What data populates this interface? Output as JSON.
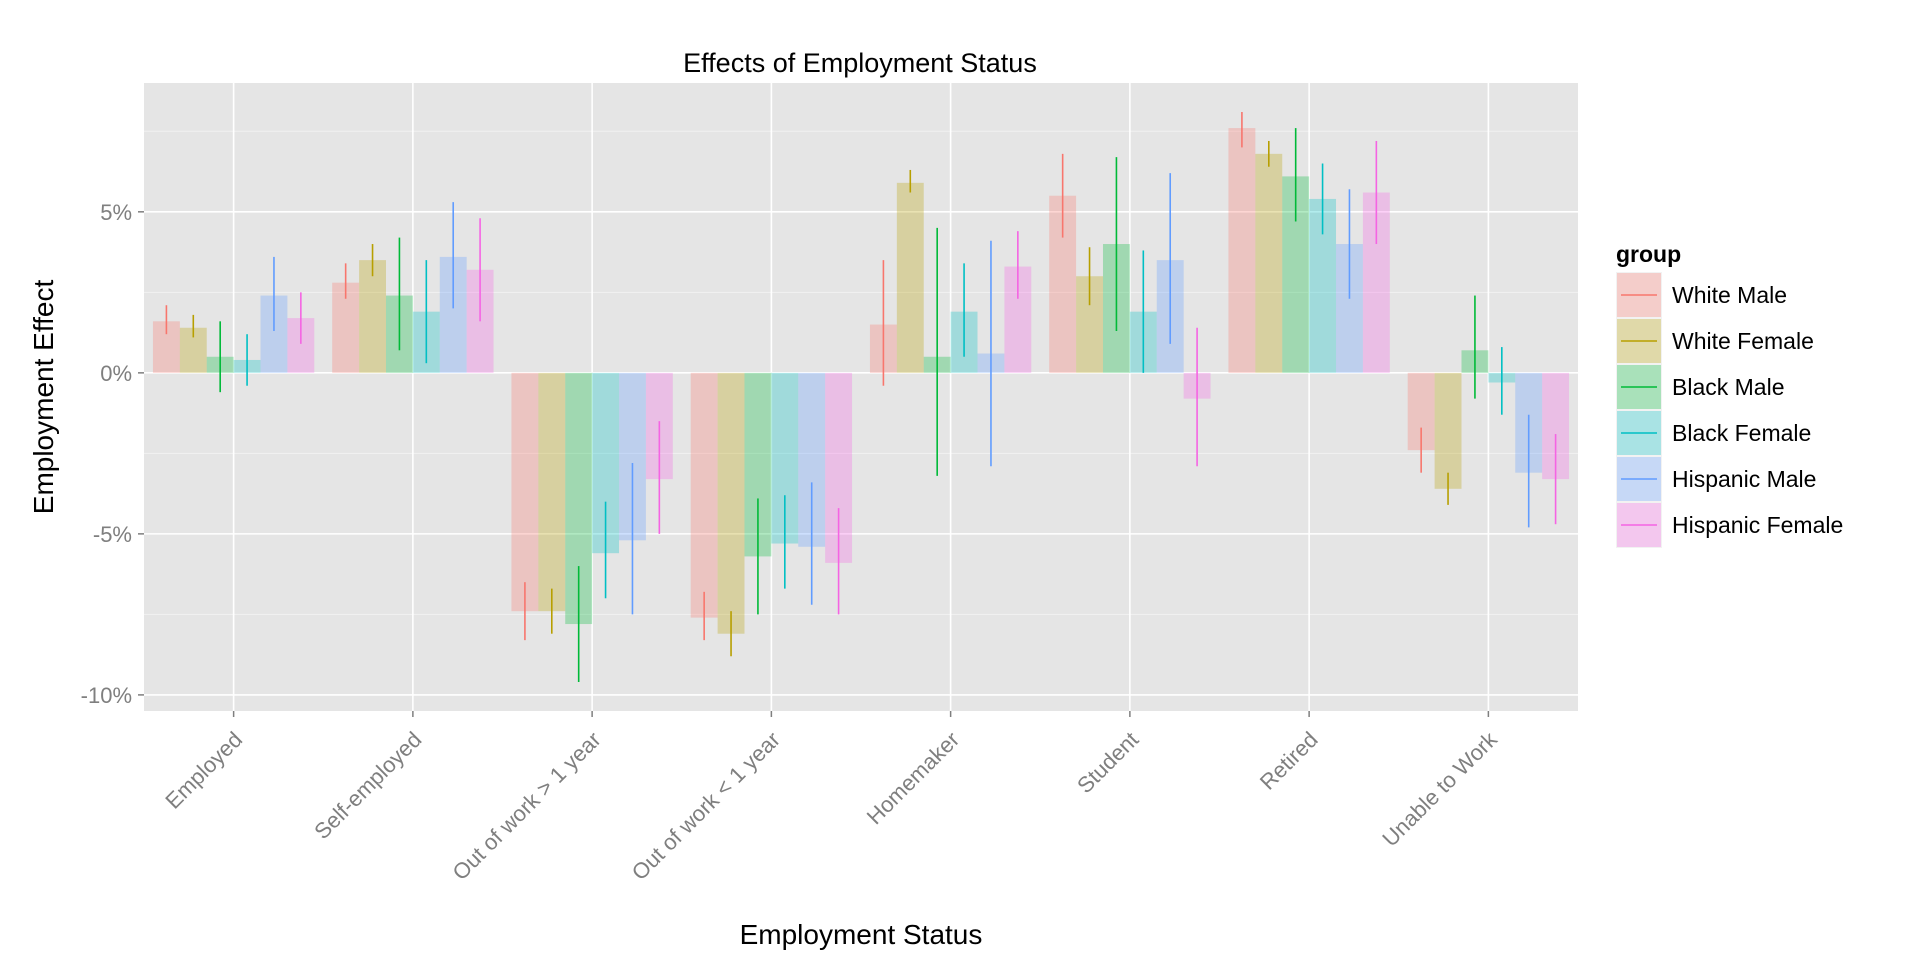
{
  "chart_data": {
    "type": "bar",
    "title": "Effects of Employment Status",
    "xlabel": "Employment Status",
    "ylabel": "Employment Effect",
    "ylim": [
      -10.5,
      9
    ],
    "y_ticks": [
      5,
      0,
      -5,
      -10
    ],
    "y_tick_labels": [
      "5%",
      "0%",
      "-5%",
      "-10%"
    ],
    "grid": true,
    "legend_title": "group",
    "legend_position": "right",
    "categories": [
      "Employed",
      "Self-employed",
      "Out of work > 1 year",
      "Out of work < 1 year",
      "Homemaker",
      "Student",
      "Retired",
      "Unable to Work"
    ],
    "series": [
      {
        "name": "White Male",
        "color": "#F8766D",
        "values": [
          1.6,
          2.8,
          -7.4,
          -7.6,
          1.5,
          5.5,
          7.6,
          -2.4
        ],
        "ci_low": [
          1.2,
          2.3,
          -8.3,
          -8.3,
          -0.4,
          4.2,
          7.0,
          -3.1
        ],
        "ci_high": [
          2.1,
          3.4,
          -6.5,
          -6.8,
          3.5,
          6.8,
          8.1,
          -1.7
        ]
      },
      {
        "name": "White Female",
        "color": "#B79F00",
        "values": [
          1.4,
          3.5,
          -7.4,
          -8.1,
          5.9,
          3.0,
          6.8,
          -3.6
        ],
        "ci_low": [
          1.1,
          3.0,
          -8.1,
          -8.8,
          5.6,
          2.1,
          6.4,
          -4.1
        ],
        "ci_high": [
          1.8,
          4.0,
          -6.7,
          -7.4,
          6.3,
          3.9,
          7.2,
          -3.1
        ]
      },
      {
        "name": "Black Male",
        "color": "#00BA38",
        "values": [
          0.5,
          2.4,
          -7.8,
          -5.7,
          0.5,
          4.0,
          6.1,
          0.7
        ],
        "ci_low": [
          -0.6,
          0.7,
          -9.6,
          -7.5,
          -3.2,
          1.3,
          4.7,
          -0.8
        ],
        "ci_high": [
          1.6,
          4.2,
          -6.0,
          -3.9,
          4.5,
          6.7,
          7.6,
          2.4
        ]
      },
      {
        "name": "Black Female",
        "color": "#00BFC4",
        "values": [
          0.4,
          1.9,
          -5.6,
          -5.3,
          1.9,
          1.9,
          5.4,
          -0.3
        ],
        "ci_low": [
          -0.4,
          0.3,
          -7.0,
          -6.7,
          0.5,
          0.0,
          4.3,
          -1.3
        ],
        "ci_high": [
          1.2,
          3.5,
          -4.0,
          -3.8,
          3.4,
          3.8,
          6.5,
          0.8
        ]
      },
      {
        "name": "Hispanic Male",
        "color": "#619CFF",
        "values": [
          2.4,
          3.6,
          -5.2,
          -5.4,
          0.6,
          3.5,
          4.0,
          -3.1
        ],
        "ci_low": [
          1.3,
          2.0,
          -7.5,
          -7.2,
          -2.9,
          0.9,
          2.3,
          -4.8
        ],
        "ci_high": [
          3.6,
          5.3,
          -2.8,
          -3.4,
          4.1,
          6.2,
          5.7,
          -1.3
        ]
      },
      {
        "name": "Hispanic Female",
        "color": "#F564E3",
        "values": [
          1.7,
          3.2,
          -3.3,
          -5.9,
          3.3,
          -0.8,
          5.6,
          -3.3
        ],
        "ci_low": [
          0.9,
          1.6,
          -5.0,
          -7.5,
          2.3,
          -2.9,
          4.0,
          -4.7
        ],
        "ci_high": [
          2.5,
          4.8,
          -1.5,
          -4.2,
          4.4,
          1.4,
          7.2,
          -1.9
        ]
      }
    ]
  }
}
